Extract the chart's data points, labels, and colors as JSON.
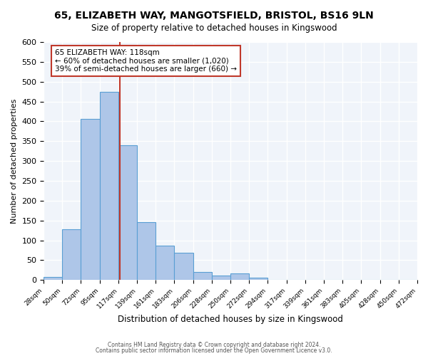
{
  "title": "65, ELIZABETH WAY, MANGOTSFIELD, BRISTOL, BS16 9LN",
  "subtitle": "Size of property relative to detached houses in Kingswood",
  "xlabel": "Distribution of detached houses by size in Kingswood",
  "ylabel": "Number of detached properties",
  "bar_color": "#aec6e8",
  "bar_edge_color": "#5a9fd4",
  "bg_color": "#f0f4fa",
  "grid_color": "#ffffff",
  "marker_value": 118,
  "marker_color": "#c0392b",
  "bins": [
    28,
    50,
    72,
    95,
    117,
    139,
    161,
    183,
    206,
    228,
    250,
    272,
    294,
    317,
    339,
    361,
    383,
    405,
    428,
    450,
    472
  ],
  "counts": [
    8,
    128,
    406,
    475,
    340,
    146,
    87,
    68,
    20,
    11,
    16,
    6,
    1,
    1,
    1,
    1,
    0,
    0,
    1,
    0
  ],
  "annotation_title": "65 ELIZABETH WAY: 118sqm",
  "annotation_line1": "← 60% of detached houses are smaller (1,020)",
  "annotation_line2": "39% of semi-detached houses are larger (660) →",
  "ylim": [
    0,
    600
  ],
  "yticks": [
    0,
    50,
    100,
    150,
    200,
    250,
    300,
    350,
    400,
    450,
    500,
    550,
    600
  ],
  "footer1": "Contains HM Land Registry data © Crown copyright and database right 2024.",
  "footer2": "Contains public sector information licensed under the Open Government Licence v3.0."
}
